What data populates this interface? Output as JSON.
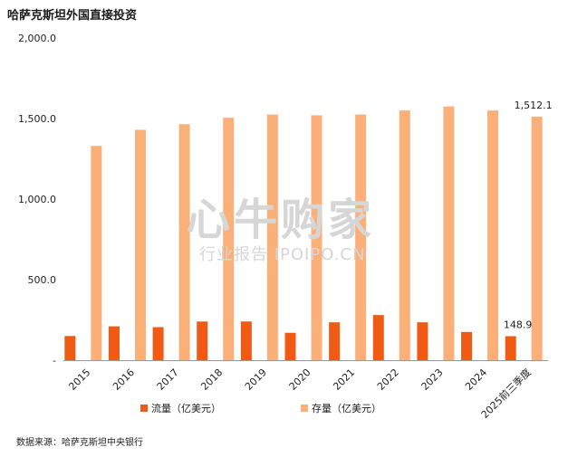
{
  "title": "哈萨克斯坦外国直接投资",
  "source": "数据来源：哈萨克斯坦中央银行",
  "watermark": {
    "main": "心牛购家",
    "sub": "行业报告 IPOIPO.CN"
  },
  "colors": {
    "flow": "#f05a14",
    "stock": "#fbb07a",
    "axis": "#999999",
    "text": "#222222"
  },
  "chart_data": {
    "type": "bar",
    "categories": [
      "2015",
      "2016",
      "2017",
      "2018",
      "2019",
      "2020",
      "2021",
      "2022",
      "2023",
      "2024",
      "2025前三季度"
    ],
    "series": [
      {
        "name": "流量（亿美元）",
        "values": [
          150,
          210,
          205,
          240,
          240,
          170,
          235,
          280,
          235,
          175,
          148.9
        ]
      },
      {
        "name": "存量（亿美元）",
        "values": [
          1330,
          1430,
          1465,
          1505,
          1525,
          1520,
          1525,
          1550,
          1575,
          1550,
          1512.1
        ]
      }
    ],
    "data_labels": [
      {
        "series": 0,
        "index": 10,
        "text": "148.9"
      },
      {
        "series": 1,
        "index": 10,
        "text": "1,512.1"
      }
    ],
    "yticks": [
      {
        "value": 0,
        "label": "-"
      },
      {
        "value": 500,
        "label": "500.0"
      },
      {
        "value": 1000,
        "label": "1,000.0"
      },
      {
        "value": 1500,
        "label": "1,500.0"
      },
      {
        "value": 2000,
        "label": "2,000.0"
      }
    ],
    "ylim": [
      0,
      2000
    ],
    "grid": false,
    "legend_position": "bottom"
  }
}
